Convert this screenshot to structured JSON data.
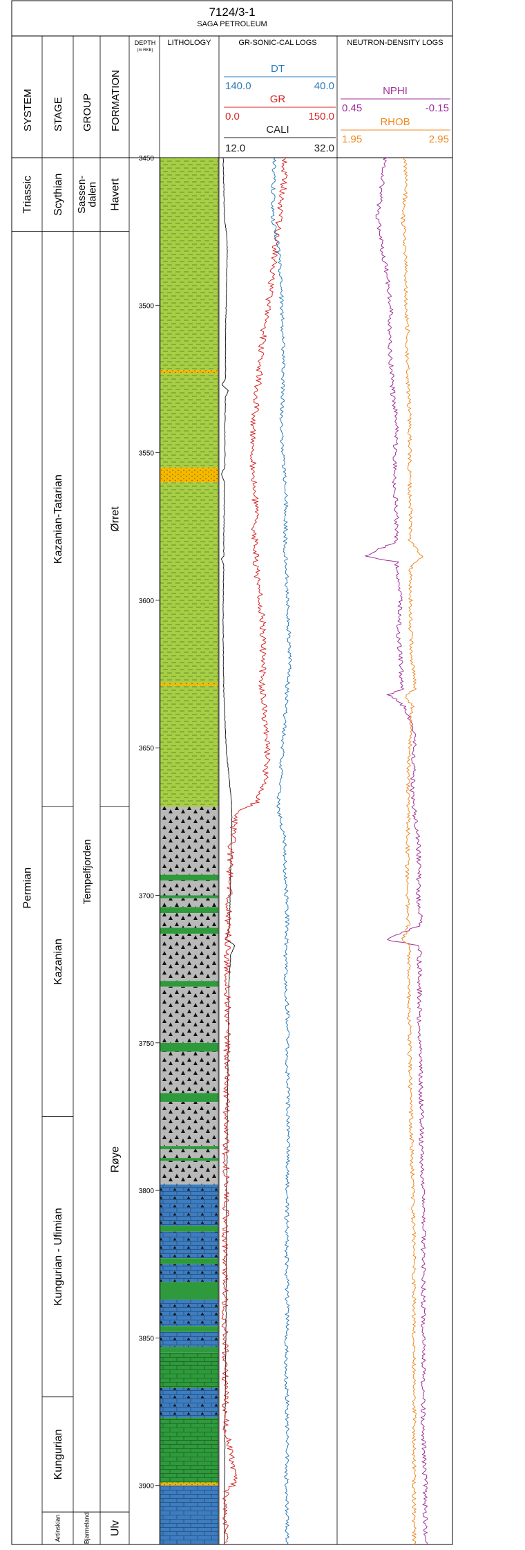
{
  "well": {
    "name": "7124/3-1",
    "operator": "SAGA PETROLEUM"
  },
  "headers": {
    "system": "SYSTEM",
    "stage": "STAGE",
    "group": "GROUP",
    "formation": "FORMATION",
    "depth": "DEPTH",
    "depth_unit": "(m RKB)",
    "lithology": "LITHOLOGY",
    "gr_sonic_cal": "GR-SONIC-CAL LOGS",
    "neutron_density": "NEUTRON-DENSITY LOGS"
  },
  "curves": {
    "dt": {
      "name": "DT",
      "left": "140.0",
      "right": "40.0",
      "color": "#2b7bb9"
    },
    "gr": {
      "name": "GR",
      "left": "0.0",
      "right": "150.0",
      "color": "#d62728"
    },
    "cali": {
      "name": "CALI",
      "left": "12.0",
      "right": "32.0",
      "color": "#222222"
    },
    "nphi": {
      "name": "NPHI",
      "left": "0.45",
      "right": "-0.15",
      "color": "#a0309a"
    },
    "rhob": {
      "name": "RHOB",
      "left": "1.95",
      "right": "2.95",
      "color": "#f08a24"
    }
  },
  "chart_data": {
    "type": "line",
    "depth_range": [
      3450,
      3920
    ],
    "depth_ticks": [
      "3450",
      "3500",
      "3550",
      "3600",
      "3650",
      "3700",
      "3750",
      "3800",
      "3850",
      "3900"
    ],
    "systems": [
      {
        "name": "Triassic",
        "top": 3450,
        "base": 3475
      },
      {
        "name": "Permian",
        "top": 3475,
        "base": 3920
      }
    ],
    "stages": [
      {
        "name": "Scythian",
        "top": 3450,
        "base": 3475
      },
      {
        "name": "Kazanian-Tatarian",
        "top": 3475,
        "base": 3670
      },
      {
        "name": "Kazanian",
        "top": 3670,
        "base": 3775
      },
      {
        "name": "Kungurian - Ufimian",
        "top": 3775,
        "base": 3870
      },
      {
        "name": "Kungurian",
        "top": 3870,
        "base": 3909
      },
      {
        "name": "Artinskian",
        "top": 3909,
        "base": 3920
      }
    ],
    "groups": [
      {
        "name": "Sassen-\ndalen",
        "top": 3450,
        "base": 3475
      },
      {
        "name": "Tempelfjorden",
        "top": 3475,
        "base": 3909
      },
      {
        "name": "Bjarmeland",
        "top": 3909,
        "base": 3920
      }
    ],
    "formations": [
      {
        "name": "Havert",
        "top": 3450,
        "base": 3475
      },
      {
        "name": "Ørret",
        "top": 3475,
        "base": 3670
      },
      {
        "name": "Røye",
        "top": 3670,
        "base": 3909
      },
      {
        "name": "Ulv",
        "top": 3909,
        "base": 3920
      }
    ],
    "lithology": [
      {
        "top": 3450,
        "base": 3522,
        "lith": "claystone"
      },
      {
        "top": 3522,
        "base": 3523,
        "lith": "sandstone"
      },
      {
        "top": 3523,
        "base": 3555,
        "lith": "claystone"
      },
      {
        "top": 3555,
        "base": 3560,
        "lith": "sandstone"
      },
      {
        "top": 3560,
        "base": 3628,
        "lith": "claystone"
      },
      {
        "top": 3628,
        "base": 3629,
        "lith": "sandstone"
      },
      {
        "top": 3629,
        "base": 3670,
        "lith": "claystone"
      },
      {
        "top": 3670,
        "base": 3693,
        "lith": "chert"
      },
      {
        "top": 3693,
        "base": 3695,
        "lith": "green"
      },
      {
        "top": 3695,
        "base": 3700,
        "lith": "chert"
      },
      {
        "top": 3700,
        "base": 3701,
        "lith": "green"
      },
      {
        "top": 3701,
        "base": 3704,
        "lith": "chert"
      },
      {
        "top": 3704,
        "base": 3706,
        "lith": "green"
      },
      {
        "top": 3706,
        "base": 3711,
        "lith": "chert"
      },
      {
        "top": 3711,
        "base": 3713,
        "lith": "green"
      },
      {
        "top": 3713,
        "base": 3729,
        "lith": "chert"
      },
      {
        "top": 3729,
        "base": 3731,
        "lith": "green"
      },
      {
        "top": 3731,
        "base": 3750,
        "lith": "chert"
      },
      {
        "top": 3750,
        "base": 3753,
        "lith": "green"
      },
      {
        "top": 3753,
        "base": 3767,
        "lith": "chert"
      },
      {
        "top": 3767,
        "base": 3770,
        "lith": "green"
      },
      {
        "top": 3770,
        "base": 3785,
        "lith": "chert"
      },
      {
        "top": 3785,
        "base": 3786,
        "lith": "green"
      },
      {
        "top": 3786,
        "base": 3789,
        "lith": "chert"
      },
      {
        "top": 3789,
        "base": 3790,
        "lith": "green"
      },
      {
        "top": 3790,
        "base": 3798,
        "lith": "chert"
      },
      {
        "top": 3798,
        "base": 3812,
        "lith": "cherty_limestone"
      },
      {
        "top": 3812,
        "base": 3814,
        "lith": "green"
      },
      {
        "top": 3814,
        "base": 3823,
        "lith": "cherty_limestone"
      },
      {
        "top": 3823,
        "base": 3825,
        "lith": "green"
      },
      {
        "top": 3825,
        "base": 3831,
        "lith": "cherty_limestone"
      },
      {
        "top": 3831,
        "base": 3837,
        "lith": "green"
      },
      {
        "top": 3837,
        "base": 3846,
        "lith": "cherty_limestone"
      },
      {
        "top": 3846,
        "base": 3848,
        "lith": "green"
      },
      {
        "top": 3848,
        "base": 3853,
        "lith": "cherty_limestone"
      },
      {
        "top": 3853,
        "base": 3855,
        "lith": "green"
      },
      {
        "top": 3855,
        "base": 3867,
        "lith": "green_limestone"
      },
      {
        "top": 3867,
        "base": 3877,
        "lith": "cherty_limestone"
      },
      {
        "top": 3877,
        "base": 3899,
        "lith": "green_limestone"
      },
      {
        "top": 3899,
        "base": 3900,
        "lith": "sandstone"
      },
      {
        "top": 3900,
        "base": 3920,
        "lith": "limestone"
      }
    ],
    "series": [
      {
        "name": "CALI",
        "track": "left",
        "scale": [
          12.0,
          32.0
        ],
        "points": [
          [
            3450,
            12.6
          ],
          [
            3470,
            12.8
          ],
          [
            3476,
            13.2
          ],
          [
            3480,
            13.3
          ],
          [
            3490,
            13.2
          ],
          [
            3500,
            13.1
          ],
          [
            3510,
            13.0
          ],
          [
            3525,
            13.0
          ],
          [
            3527,
            12.4
          ],
          [
            3529,
            13.5
          ],
          [
            3531,
            13.0
          ],
          [
            3540,
            12.9
          ],
          [
            3555,
            12.9
          ],
          [
            3557,
            12.3
          ],
          [
            3560,
            12.8
          ],
          [
            3580,
            12.7
          ],
          [
            3585,
            12.7
          ],
          [
            3586,
            12.3
          ],
          [
            3588,
            12.7
          ],
          [
            3600,
            12.6
          ],
          [
            3615,
            12.6
          ],
          [
            3630,
            12.7
          ],
          [
            3640,
            12.9
          ],
          [
            3650,
            13.1
          ],
          [
            3660,
            13.6
          ],
          [
            3668,
            14.0
          ],
          [
            3675,
            14.1
          ],
          [
            3690,
            13.9
          ],
          [
            3710,
            13.7
          ],
          [
            3715,
            13.2
          ],
          [
            3717,
            14.6
          ],
          [
            3720,
            13.9
          ],
          [
            3730,
            13.6
          ],
          [
            3760,
            13.4
          ],
          [
            3800,
            13.2
          ],
          [
            3840,
            13.1
          ],
          [
            3880,
            12.9
          ],
          [
            3920,
            12.8
          ]
        ]
      },
      {
        "name": "GR",
        "track": "left",
        "scale": [
          0.0,
          150.0
        ],
        "points": [
          [
            3450,
            84
          ],
          [
            3460,
            82
          ],
          [
            3470,
            76
          ],
          [
            3480,
            72
          ],
          [
            3490,
            68
          ],
          [
            3500,
            62
          ],
          [
            3510,
            56
          ],
          [
            3520,
            52
          ],
          [
            3530,
            48
          ],
          [
            3540,
            44
          ],
          [
            3550,
            42
          ],
          [
            3560,
            44
          ],
          [
            3570,
            46
          ],
          [
            3580,
            45
          ],
          [
            3590,
            48
          ],
          [
            3600,
            52
          ],
          [
            3610,
            56
          ],
          [
            3620,
            56
          ],
          [
            3630,
            54
          ],
          [
            3640,
            58
          ],
          [
            3650,
            62
          ],
          [
            3660,
            58
          ],
          [
            3668,
            50
          ],
          [
            3672,
            22
          ],
          [
            3680,
            16
          ],
          [
            3690,
            13
          ],
          [
            3700,
            12
          ],
          [
            3710,
            11
          ],
          [
            3720,
            10
          ],
          [
            3740,
            10
          ],
          [
            3760,
            9
          ],
          [
            3780,
            8
          ],
          [
            3800,
            8
          ],
          [
            3820,
            7
          ],
          [
            3840,
            7
          ],
          [
            3860,
            7
          ],
          [
            3880,
            8
          ],
          [
            3899,
            20
          ],
          [
            3902,
            8
          ],
          [
            3920,
            6
          ]
        ]
      },
      {
        "name": "DT",
        "track": "left",
        "scale": [
          140.0,
          40.0
        ],
        "points": [
          [
            3450,
            93
          ],
          [
            3460,
            94
          ],
          [
            3470,
            95
          ],
          [
            3480,
            90
          ],
          [
            3490,
            88
          ],
          [
            3500,
            87
          ],
          [
            3510,
            86
          ],
          [
            3520,
            85
          ],
          [
            3530,
            86
          ],
          [
            3540,
            87
          ],
          [
            3550,
            86
          ],
          [
            3560,
            84
          ],
          [
            3570,
            83
          ],
          [
            3580,
            84
          ],
          [
            3590,
            83
          ],
          [
            3600,
            82
          ],
          [
            3610,
            81
          ],
          [
            3620,
            80
          ],
          [
            3630,
            82
          ],
          [
            3640,
            84
          ],
          [
            3650,
            86
          ],
          [
            3660,
            88
          ],
          [
            3670,
            90
          ],
          [
            3680,
            85
          ],
          [
            3690,
            84
          ],
          [
            3700,
            83
          ],
          [
            3710,
            82
          ],
          [
            3720,
            84
          ],
          [
            3730,
            83
          ],
          [
            3740,
            82
          ],
          [
            3760,
            82
          ],
          [
            3780,
            81
          ],
          [
            3800,
            82
          ],
          [
            3820,
            83
          ],
          [
            3840,
            82
          ],
          [
            3860,
            83
          ],
          [
            3880,
            82
          ],
          [
            3900,
            83
          ],
          [
            3920,
            82
          ]
        ]
      },
      {
        "name": "NPHI",
        "track": "right",
        "scale": [
          0.45,
          -0.15
        ],
        "points": [
          [
            3450,
            0.2
          ],
          [
            3460,
            0.22
          ],
          [
            3470,
            0.24
          ],
          [
            3480,
            0.22
          ],
          [
            3490,
            0.19
          ],
          [
            3500,
            0.17
          ],
          [
            3510,
            0.18
          ],
          [
            3520,
            0.17
          ],
          [
            3530,
            0.16
          ],
          [
            3540,
            0.14
          ],
          [
            3550,
            0.15
          ],
          [
            3560,
            0.15
          ],
          [
            3570,
            0.14
          ],
          [
            3580,
            0.14
          ],
          [
            3585,
            0.31
          ],
          [
            3587,
            0.14
          ],
          [
            3600,
            0.12
          ],
          [
            3610,
            0.13
          ],
          [
            3620,
            0.12
          ],
          [
            3630,
            0.11
          ],
          [
            3632,
            0.18
          ],
          [
            3636,
            0.1
          ],
          [
            3645,
            0.05
          ],
          [
            3655,
            0.05
          ],
          [
            3665,
            0.06
          ],
          [
            3670,
            0.05
          ],
          [
            3680,
            0.03
          ],
          [
            3690,
            0.02
          ],
          [
            3700,
            0.03
          ],
          [
            3710,
            0.01
          ],
          [
            3715,
            0.2
          ],
          [
            3717,
            0.02
          ],
          [
            3730,
            0.02
          ],
          [
            3750,
            0.02
          ],
          [
            3770,
            0.01
          ],
          [
            3790,
            0.01
          ],
          [
            3800,
            0.0
          ],
          [
            3820,
            0.0
          ],
          [
            3840,
            0.0
          ],
          [
            3860,
            0.0
          ],
          [
            3880,
            0.0
          ],
          [
            3900,
            -0.01
          ],
          [
            3920,
            -0.01
          ]
        ]
      },
      {
        "name": "RHOB",
        "track": "right",
        "scale": [
          1.95,
          2.95
        ],
        "points": [
          [
            3450,
            2.53
          ],
          [
            3460,
            2.55
          ],
          [
            3470,
            2.52
          ],
          [
            3480,
            2.54
          ],
          [
            3490,
            2.55
          ],
          [
            3500,
            2.55
          ],
          [
            3510,
            2.56
          ],
          [
            3520,
            2.56
          ],
          [
            3530,
            2.57
          ],
          [
            3540,
            2.58
          ],
          [
            3550,
            2.58
          ],
          [
            3560,
            2.58
          ],
          [
            3570,
            2.59
          ],
          [
            3580,
            2.58
          ],
          [
            3585,
            2.7
          ],
          [
            3588,
            2.59
          ],
          [
            3600,
            2.59
          ],
          [
            3610,
            2.59
          ],
          [
            3620,
            2.6
          ],
          [
            3630,
            2.63
          ],
          [
            3632,
            2.54
          ],
          [
            3636,
            2.6
          ],
          [
            3645,
            2.59
          ],
          [
            3655,
            2.57
          ],
          [
            3665,
            2.57
          ],
          [
            3675,
            2.57
          ],
          [
            3690,
            2.56
          ],
          [
            3700,
            2.56
          ],
          [
            3710,
            2.57
          ],
          [
            3715,
            2.52
          ],
          [
            3717,
            2.58
          ],
          [
            3730,
            2.57
          ],
          [
            3750,
            2.58
          ],
          [
            3770,
            2.59
          ],
          [
            3790,
            2.6
          ],
          [
            3800,
            2.61
          ],
          [
            3820,
            2.62
          ],
          [
            3840,
            2.62
          ],
          [
            3860,
            2.62
          ],
          [
            3880,
            2.62
          ],
          [
            3900,
            2.62
          ],
          [
            3920,
            2.62
          ]
        ]
      }
    ]
  }
}
